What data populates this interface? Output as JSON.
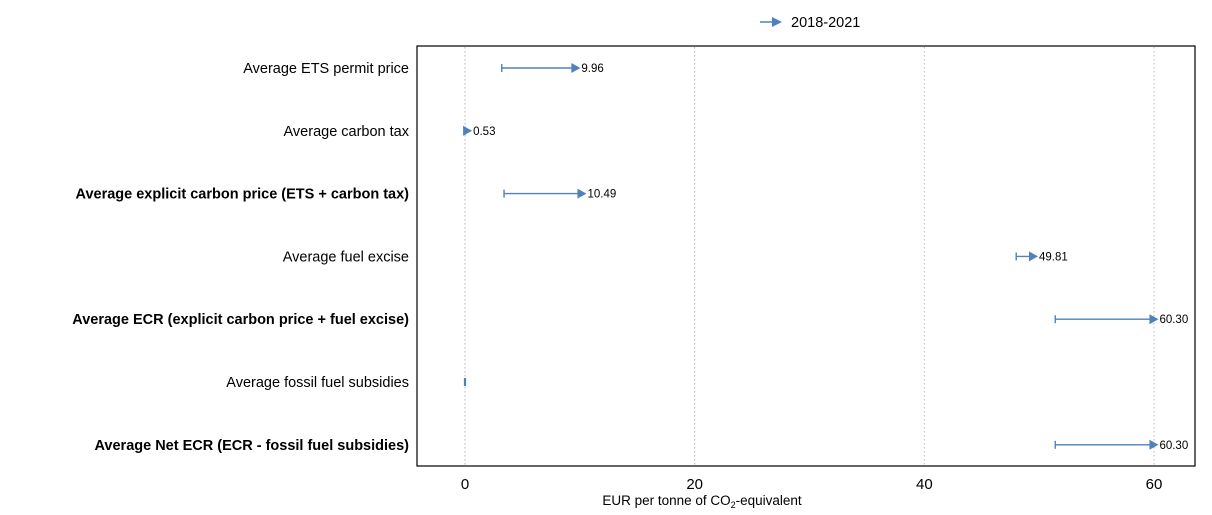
{
  "chart_data": {
    "type": "dumbbell-arrow",
    "legend": {
      "label": "2018-2021",
      "position": "top"
    },
    "xlabel_prefix": "EUR per tonne of CO",
    "xlabel_sub": "2",
    "xlabel_suffix": "-equivalent",
    "xlim": [
      -2,
      64
    ],
    "xticks": [
      {
        "value": 0,
        "label": "0"
      },
      {
        "value": 20,
        "label": "20"
      },
      {
        "value": 40,
        "label": "40"
      },
      {
        "value": 60,
        "label": "60"
      }
    ],
    "grid": "vertical-dotted",
    "color": "#4f81bd",
    "categories": [
      {
        "label": "Average ETS permit price",
        "bold": false,
        "start": 3.2,
        "end": 9.96,
        "value_label": "9.96"
      },
      {
        "label": "Average carbon tax",
        "bold": false,
        "start": 0.0,
        "end": 0.53,
        "value_label": "0.53"
      },
      {
        "label": "Average explicit carbon price (ETS + carbon tax)",
        "bold": true,
        "start": 3.4,
        "end": 10.49,
        "value_label": "10.49"
      },
      {
        "label": "Average fuel excise",
        "bold": false,
        "start": 48.0,
        "end": 49.81,
        "value_label": "49.81"
      },
      {
        "label": "Average ECR (explicit carbon price + fuel excise)",
        "bold": true,
        "start": 51.4,
        "end": 60.3,
        "value_label": "60.30"
      },
      {
        "label": "Average fossil fuel subsidies",
        "bold": false,
        "start": 0.0,
        "end": 0.0,
        "value_label": ""
      },
      {
        "label": "Average Net ECR (ECR - fossil fuel subsidies)",
        "bold": true,
        "start": 51.4,
        "end": 60.3,
        "value_label": "60.30"
      }
    ]
  }
}
